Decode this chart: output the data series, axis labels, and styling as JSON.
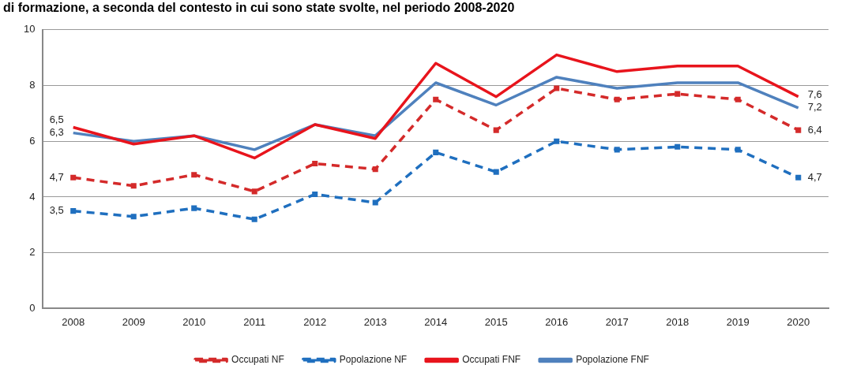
{
  "chart_data": {
    "type": "line",
    "title": "di formazione, a seconda del contesto in cui sono state svolte, nel periodo 2008-2020",
    "categories": [
      "2008",
      "2009",
      "2010",
      "2011",
      "2012",
      "2013",
      "2014",
      "2015",
      "2016",
      "2017",
      "2018",
      "2019",
      "2020"
    ],
    "series": [
      {
        "name": "Occupati NF",
        "color": "#d42a2a",
        "marker": "square",
        "line_style": "dashed",
        "values": [
          4.7,
          4.4,
          4.8,
          4.2,
          5.2,
          5.0,
          7.5,
          6.4,
          7.9,
          7.5,
          7.7,
          7.5,
          6.4
        ],
        "value_labels": [
          "4,7",
          null,
          null,
          null,
          null,
          null,
          null,
          null,
          null,
          null,
          null,
          null,
          "6,4"
        ]
      },
      {
        "name": "Popolazione NF",
        "color": "#1f6fbf",
        "marker": "square",
        "line_style": "dashed",
        "values": [
          3.5,
          3.3,
          3.6,
          3.2,
          4.1,
          3.8,
          5.6,
          4.9,
          6.0,
          5.7,
          5.8,
          5.7,
          4.7
        ],
        "value_labels": [
          "3,5",
          null,
          null,
          null,
          null,
          null,
          null,
          null,
          null,
          null,
          null,
          null,
          "4,7"
        ]
      },
      {
        "name": "Occupati FNF",
        "color": "#e8141c",
        "marker": "none",
        "line_style": "solid",
        "values": [
          6.5,
          5.9,
          6.2,
          5.4,
          6.6,
          6.1,
          8.8,
          7.6,
          9.1,
          8.5,
          8.7,
          8.7,
          7.6
        ],
        "value_labels": [
          "6,5",
          null,
          null,
          null,
          null,
          null,
          null,
          null,
          null,
          null,
          null,
          null,
          "7,6"
        ]
      },
      {
        "name": "Popolazione FNF",
        "color": "#4f81bd",
        "marker": "none",
        "line_style": "solid",
        "values": [
          6.3,
          6.0,
          6.2,
          5.7,
          6.6,
          6.2,
          8.1,
          7.3,
          8.3,
          7.9,
          8.1,
          8.1,
          7.2
        ],
        "value_labels": [
          "6,3",
          null,
          null,
          null,
          null,
          null,
          null,
          null,
          null,
          null,
          null,
          null,
          "7,2"
        ]
      }
    ],
    "ylim": [
      0,
      10
    ],
    "yticks": [
      0,
      2,
      4,
      6,
      8,
      10
    ],
    "grid": "y",
    "legend": "bottom"
  }
}
